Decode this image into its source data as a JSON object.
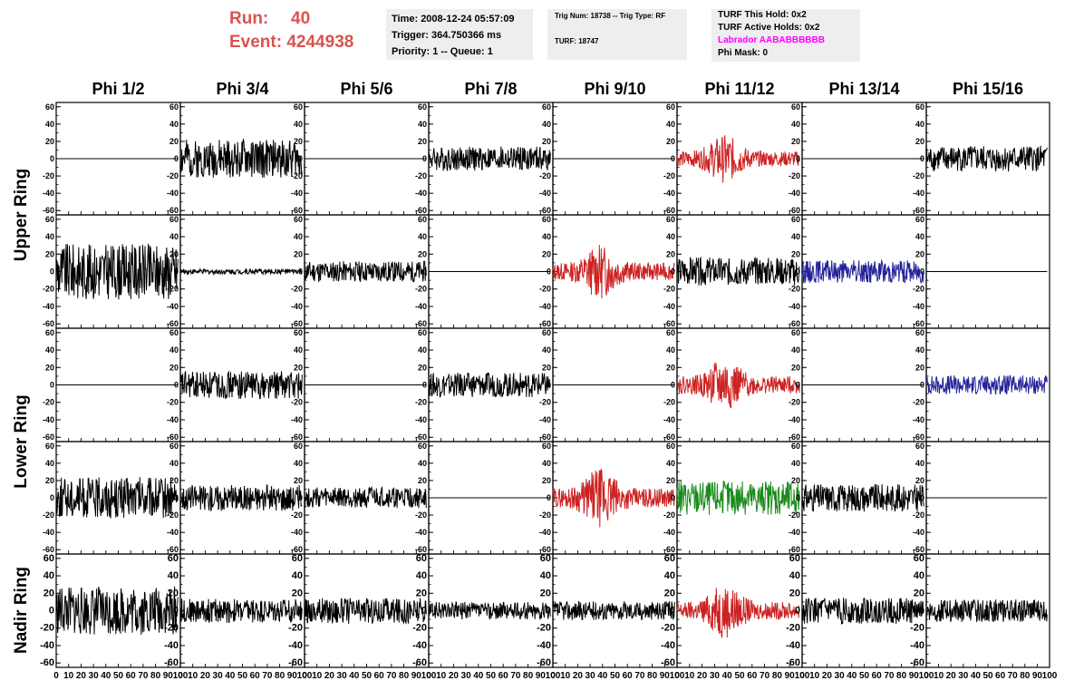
{
  "header": {
    "run_label": "Run:",
    "run_value": "40",
    "event_label": "Event:",
    "event_value": "4244938",
    "time": "Time: 2008-12-24 05:57:09",
    "trigger": "Trigger: 364.750366 ms",
    "priority": "Priority: 1 -- Queue: 1",
    "trig_num": "Trig Num: 18738 -- Trig Type: RF",
    "turf": "TURF: 18747",
    "turf_this_hold": "TURF This Hold: 0x2",
    "turf_active_holds": "TURF Active Holds: 0x2",
    "labrador": "Labrador AABABBBBBB",
    "phi_mask": "Phi Mask: 0"
  },
  "colors": {
    "header_red": "#d9534f",
    "labrador": "#ff00ff",
    "black": "#000000",
    "red": "#cc2222",
    "blue": "#222299",
    "green": "#1a8a1a"
  },
  "chart_data": {
    "type": "line",
    "columns": [
      "Phi 1/2",
      "Phi 3/4",
      "Phi 5/6",
      "Phi 7/8",
      "Phi 9/10",
      "Phi 11/12",
      "Phi 13/14",
      "Phi 15/16"
    ],
    "rows": [
      "Upper Ring",
      "Upper Ring",
      "Lower Ring",
      "Lower Ring",
      "Nadir Ring"
    ],
    "row_labels": [
      "Upper Ring",
      "Lower Ring",
      "Nadir Ring"
    ],
    "xlim": [
      0,
      100
    ],
    "ylim": [
      -65,
      65
    ],
    "x_ticks": [
      "0",
      "10",
      "20",
      "30",
      "40",
      "50",
      "60",
      "70",
      "80",
      "90",
      "100"
    ],
    "y_ticks": [
      "-60",
      "-40",
      "-20",
      "0",
      "20",
      "40",
      "60"
    ],
    "panels": [
      [
        {
          "color": "black",
          "amp": 0,
          "seed": 1
        },
        {
          "color": "black",
          "amp": 22,
          "seed": 2
        },
        {
          "color": "black",
          "amp": 0,
          "seed": 3
        },
        {
          "color": "black",
          "amp": 14,
          "seed": 4
        },
        {
          "color": "black",
          "amp": 0,
          "seed": 5
        },
        {
          "color": "red",
          "amp": 16,
          "seed": 6,
          "burst": true
        },
        {
          "color": "black",
          "amp": 0,
          "seed": 7
        },
        {
          "color": "black",
          "amp": 15,
          "seed": 8
        }
      ],
      [
        {
          "color": "black",
          "amp": 32,
          "seed": 9
        },
        {
          "color": "black",
          "amp": 3,
          "seed": 10
        },
        {
          "color": "black",
          "amp": 12,
          "seed": 11
        },
        {
          "color": "black",
          "amp": 0,
          "seed": 12
        },
        {
          "color": "red",
          "amp": 18,
          "seed": 13,
          "burst": true
        },
        {
          "color": "black",
          "amp": 16,
          "seed": 14
        },
        {
          "color": "blue",
          "amp": 13,
          "seed": 15
        },
        {
          "color": "black",
          "amp": 0,
          "seed": 16
        }
      ],
      [
        {
          "color": "black",
          "amp": 0,
          "seed": 17
        },
        {
          "color": "black",
          "amp": 16,
          "seed": 18
        },
        {
          "color": "black",
          "amp": 0,
          "seed": 19
        },
        {
          "color": "black",
          "amp": 14,
          "seed": 20
        },
        {
          "color": "black",
          "amp": 0,
          "seed": 21
        },
        {
          "color": "red",
          "amp": 18,
          "seed": 22,
          "burst": true
        },
        {
          "color": "black",
          "amp": 0,
          "seed": 23
        },
        {
          "color": "blue",
          "amp": 11,
          "seed": 24
        }
      ],
      [
        {
          "color": "black",
          "amp": 24,
          "seed": 25
        },
        {
          "color": "black",
          "amp": 15,
          "seed": 26
        },
        {
          "color": "black",
          "amp": 12,
          "seed": 27
        },
        {
          "color": "black",
          "amp": 0,
          "seed": 28
        },
        {
          "color": "red",
          "amp": 20,
          "seed": 29,
          "burst": true
        },
        {
          "color": "green",
          "amp": 20,
          "seed": 30
        },
        {
          "color": "black",
          "amp": 16,
          "seed": 31
        },
        {
          "color": "black",
          "amp": 0,
          "seed": 32
        }
      ],
      [
        {
          "color": "black",
          "amp": 28,
          "seed": 33
        },
        {
          "color": "black",
          "amp": 14,
          "seed": 34
        },
        {
          "color": "black",
          "amp": 15,
          "seed": 35
        },
        {
          "color": "black",
          "amp": 10,
          "seed": 36
        },
        {
          "color": "black",
          "amp": 11,
          "seed": 37
        },
        {
          "color": "red",
          "amp": 18,
          "seed": 38,
          "burst": true
        },
        {
          "color": "black",
          "amp": 15,
          "seed": 39
        },
        {
          "color": "black",
          "amp": 13,
          "seed": 40
        }
      ]
    ]
  }
}
